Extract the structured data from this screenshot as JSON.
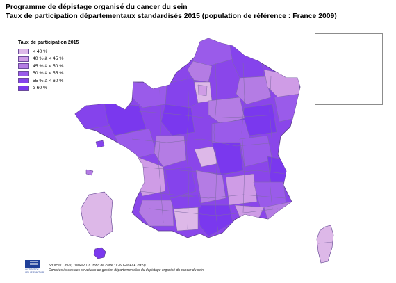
{
  "title": {
    "line1": "Programme de dépistage organisé du cancer du sein",
    "line2": "Taux de participation départementaux standardisés 2015 (population de référence : France 2009)"
  },
  "legend": {
    "title": "Taux de participation 2015",
    "items": [
      {
        "label": "< 40 %",
        "color": "#ddb8e8"
      },
      {
        "label": "40 % à < 45 %",
        "color": "#cf9ce6"
      },
      {
        "label": "45 % à < 50 %",
        "color": "#b47ce4"
      },
      {
        "label": "50 % à < 55 %",
        "color": "#9a5bea"
      },
      {
        "label": "55 % à < 60 %",
        "color": "#8543ec"
      },
      {
        "label": "≥ 60 %",
        "color": "#7a38ee"
      }
    ]
  },
  "footer": {
    "logo_text": "INSTITUT DE VEILLE SANITAIRE",
    "sources": "Sources : InVs, 10/04/2016 (fond de carte : IGN GéoFLA 2009)",
    "note": "Données issues des structures de gestion départementales du dépistage organisé du cancer du sein"
  },
  "colors": {
    "border": "#7f6aa5",
    "outline": "#5a3c8c"
  }
}
